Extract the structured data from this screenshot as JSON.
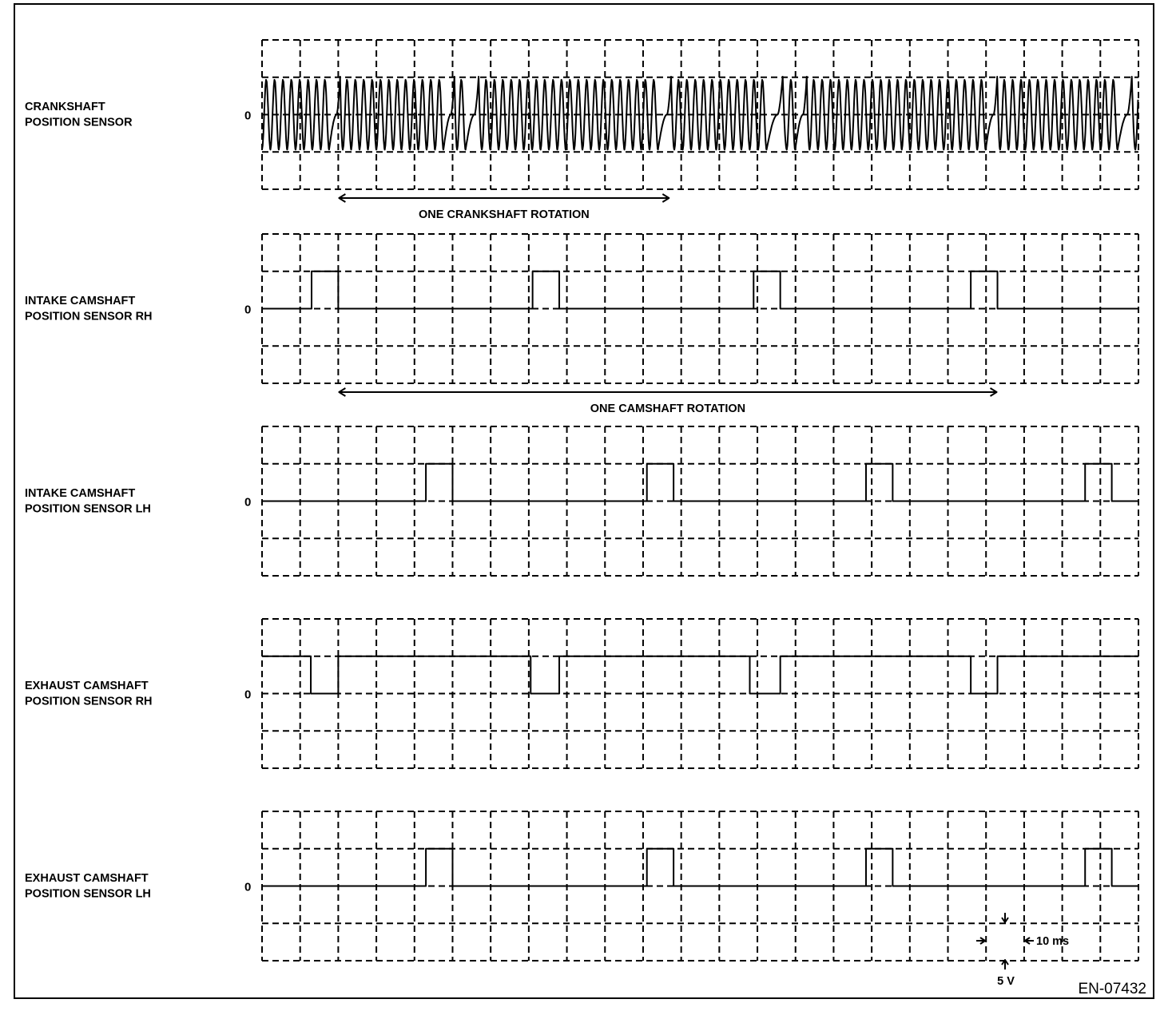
{
  "figure_code": "EN-07432",
  "colors": {
    "line": "#000000",
    "background": "#ffffff"
  },
  "chart_data": {
    "type": "line",
    "grid": true,
    "x_unit": "ms",
    "xlim": [
      0,
      230
    ],
    "x_division": 10,
    "y_division": 5,
    "y_unit": "V",
    "ylim": [
      -10,
      10
    ],
    "zero_label": "0",
    "scale_legend": {
      "time": "10 ms",
      "voltage": "5 V"
    },
    "annotations": [
      {
        "text": "ONE CRANKSHAFT ROTATION",
        "from": 20,
        "to": 107,
        "below_plot": 0
      },
      {
        "text": "ONE CAMSHAFT ROTATION",
        "from": 20,
        "to": 193,
        "below_plot": 1
      }
    ],
    "signals": [
      {
        "label": [
          "CRANKSHAFT",
          "POSITION SENSOR"
        ],
        "kind": "ac_toothed",
        "amplitude": 4.7,
        "tooth_period": 2.2,
        "missing_tooth_times": [
          19,
          49,
          55.5,
          106,
          135.5,
          141.5,
          191.5,
          227
        ]
      },
      {
        "label": [
          "INTAKE CAMSHAFT",
          "POSITION SENSOR RH"
        ],
        "kind": "pulse",
        "base": 0,
        "active": 5,
        "active_intervals": [
          [
            13,
            20
          ],
          [
            71,
            78
          ],
          [
            129,
            136
          ],
          [
            186,
            193
          ]
        ]
      },
      {
        "label": [
          "INTAKE CAMSHAFT",
          "POSITION SENSOR LH"
        ],
        "kind": "pulse",
        "base": 0,
        "active": 5,
        "active_intervals": [
          [
            43,
            50
          ],
          [
            101,
            108
          ],
          [
            158.5,
            165.5
          ],
          [
            216,
            223
          ]
        ]
      },
      {
        "label": [
          "EXHAUST CAMSHAFT",
          "POSITION SENSOR RH"
        ],
        "kind": "pulse",
        "base": 5,
        "active": 0,
        "active_intervals": [
          [
            12.8,
            20
          ],
          [
            70.5,
            78
          ],
          [
            128,
            136
          ],
          [
            186,
            193
          ]
        ]
      },
      {
        "label": [
          "EXHAUST CAMSHAFT",
          "POSITION SENSOR LH"
        ],
        "kind": "pulse",
        "base": 0,
        "active": 5,
        "active_intervals": [
          [
            43,
            50
          ],
          [
            101,
            108
          ],
          [
            158.5,
            165.5
          ],
          [
            216,
            223
          ]
        ]
      }
    ]
  }
}
